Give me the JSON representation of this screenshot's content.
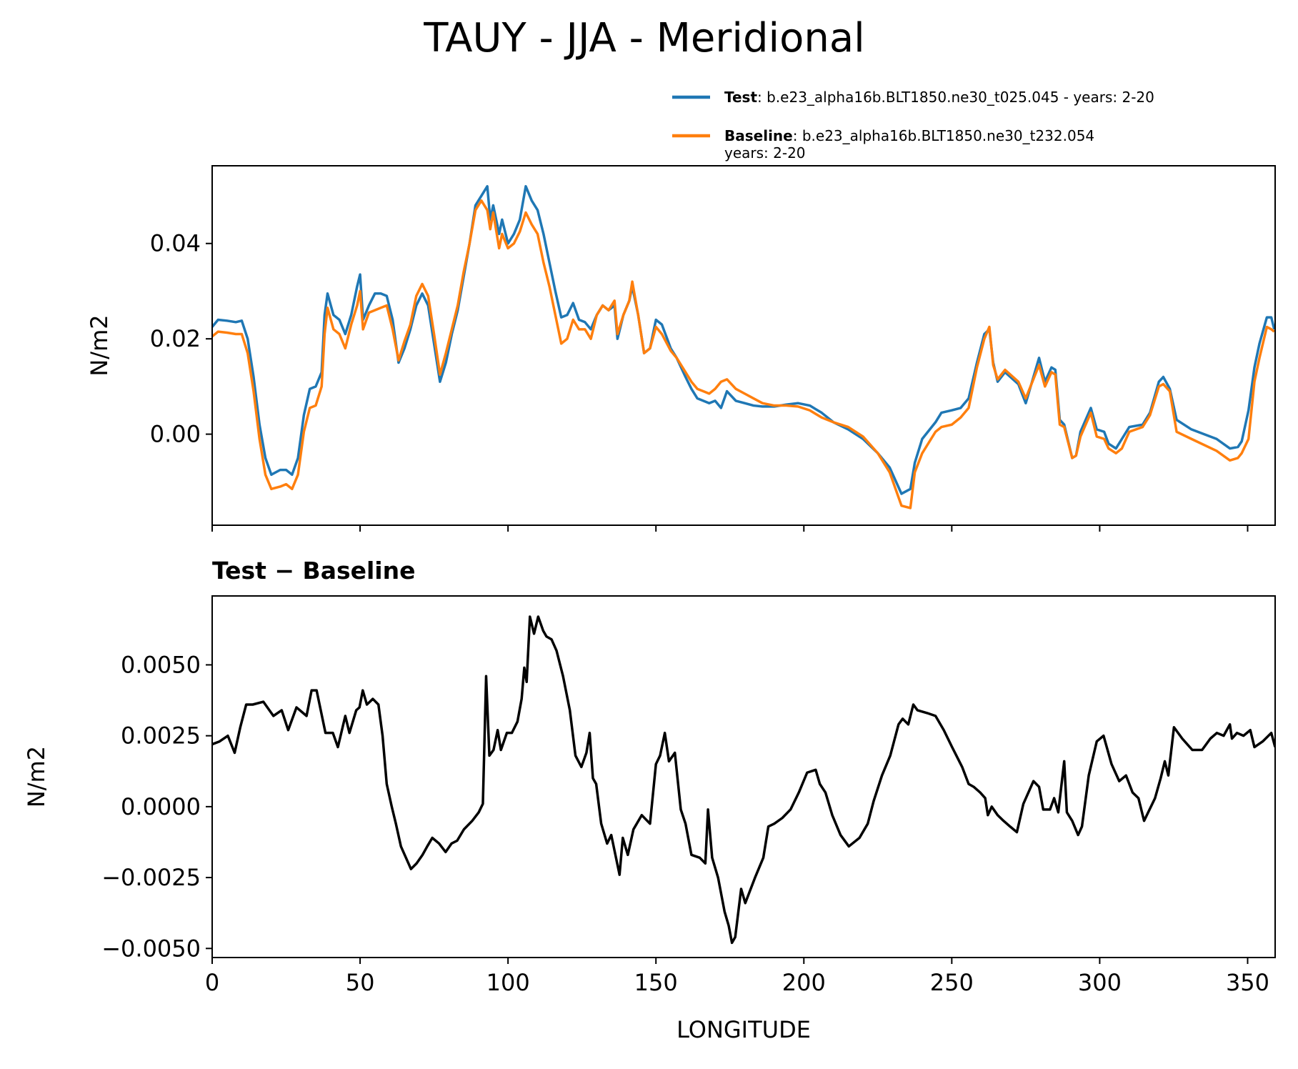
{
  "chart_data": [
    {
      "type": "line",
      "title": "TAUY - JJA - Meridional",
      "ylabel": "N/m2",
      "xlim": [
        0,
        359.3
      ],
      "xticks": [
        0,
        50,
        100,
        150,
        200,
        250,
        300,
        350
      ],
      "ylim": [
        -0.0191,
        0.0563
      ],
      "yticks": [
        {
          "value": 0,
          "label": "0.00"
        },
        0.02,
        0.04
      ],
      "legend": "upper right",
      "x": [
        0,
        2,
        5,
        8,
        10,
        12,
        14,
        16,
        18,
        20,
        23,
        25,
        27,
        29,
        31,
        33,
        35,
        37,
        38,
        39,
        41,
        43,
        45,
        47,
        49,
        50,
        51,
        53,
        55,
        57,
        59,
        61,
        63,
        65,
        67,
        69,
        71,
        73,
        75,
        77,
        79,
        81,
        83,
        85,
        87,
        89,
        91,
        93,
        94,
        95,
        97,
        98,
        100,
        102,
        104,
        106,
        108,
        110,
        112,
        114,
        116,
        118,
        120,
        122,
        124,
        126,
        128,
        130,
        132,
        134,
        136,
        137,
        139,
        141,
        142,
        144,
        146,
        148,
        150,
        152,
        155,
        157,
        160,
        162,
        164,
        166,
        168,
        170,
        172,
        174,
        177,
        180,
        183,
        186,
        190,
        194,
        198,
        202,
        206,
        210,
        215,
        220,
        225,
        229,
        233,
        236,
        237.5,
        240,
        244.5,
        246.5,
        250,
        253,
        255.7,
        258.5,
        261,
        262.7,
        264,
        265.5,
        268,
        272.5,
        275,
        279.5,
        281.5,
        283.7,
        285,
        286.5,
        288,
        290.7,
        292,
        293.5,
        297,
        299,
        301.5,
        303,
        305.5,
        307.5,
        310,
        314.5,
        317,
        320,
        321.5,
        323.7,
        326,
        331,
        339.5,
        344,
        346.7,
        348,
        350.3,
        352.3,
        354,
        356.5,
        358,
        359
      ],
      "series": [
        {
          "name": "Test",
          "description": [
            ": b.e23_alpha16b.BLT1850.ne30_t025.045 - years: 2-20"
          ],
          "color": "#1f77b4",
          "values": [
            0.0225,
            0.024,
            0.0238,
            0.0235,
            0.0238,
            0.02,
            0.012,
            0.002,
            -0.005,
            -0.0085,
            -0.0075,
            -0.0075,
            -0.0085,
            -0.005,
            0.004,
            0.0095,
            0.01,
            0.013,
            0.025,
            0.0295,
            0.025,
            0.024,
            0.021,
            0.025,
            0.031,
            0.0335,
            0.024,
            0.027,
            0.0295,
            0.0295,
            0.029,
            0.024,
            0.015,
            0.018,
            0.022,
            0.027,
            0.0295,
            0.027,
            0.019,
            0.011,
            0.015,
            0.021,
            0.026,
            0.033,
            0.04,
            0.048,
            0.05,
            0.052,
            0.045,
            0.048,
            0.042,
            0.045,
            0.04,
            0.042,
            0.045,
            0.052,
            0.049,
            0.047,
            0.042,
            0.036,
            0.03,
            0.0245,
            0.025,
            0.0275,
            0.024,
            0.0235,
            0.022,
            0.025,
            0.027,
            0.026,
            0.027,
            0.02,
            0.025,
            0.028,
            0.031,
            0.025,
            0.017,
            0.018,
            0.024,
            0.023,
            0.018,
            0.016,
            0.012,
            0.0095,
            0.0075,
            0.007,
            0.0065,
            0.007,
            0.0055,
            0.009,
            0.007,
            0.0065,
            0.006,
            0.0058,
            0.0058,
            0.0062,
            0.0065,
            0.006,
            0.0045,
            0.0025,
            0.001,
            -0.001,
            -0.004,
            -0.007,
            -0.0125,
            -0.0115,
            -0.006,
            -0.001,
            0.0025,
            0.0045,
            0.005,
            0.0055,
            0.0075,
            0.015,
            0.021,
            0.022,
            0.015,
            0.011,
            0.013,
            0.0105,
            0.0065,
            0.016,
            0.011,
            0.014,
            0.0135,
            0.003,
            0.002,
            -0.005,
            -0.0045,
            0.0005,
            0.0055,
            0.001,
            0.0005,
            -0.002,
            -0.003,
            -0.001,
            0.0015,
            0.002,
            0.0045,
            0.011,
            0.012,
            0.0095,
            0.003,
            0.001,
            -0.001,
            -0.003,
            -0.0027,
            -0.0015,
            0.005,
            0.014,
            0.019,
            0.0245,
            0.0245,
            0.022
          ]
        },
        {
          "name": "Baseline",
          "description": [
            ": b.e23_alpha16b.BLT1850.ne30_t232.054",
            "years: 2-20"
          ],
          "color": "#ff7f0e",
          "values": [
            0.0205,
            0.0215,
            0.0213,
            0.021,
            0.021,
            0.017,
            0.009,
            -0.001,
            -0.0085,
            -0.0115,
            -0.011,
            -0.0105,
            -0.0115,
            -0.0085,
            0.0005,
            0.0055,
            0.006,
            0.01,
            0.021,
            0.0265,
            0.022,
            0.021,
            0.018,
            0.023,
            0.027,
            0.03,
            0.022,
            0.0255,
            0.026,
            0.0265,
            0.027,
            0.022,
            0.0155,
            0.0195,
            0.023,
            0.029,
            0.0315,
            0.029,
            0.021,
            0.0125,
            0.017,
            0.022,
            0.027,
            0.034,
            0.04,
            0.047,
            0.049,
            0.047,
            0.043,
            0.0465,
            0.039,
            0.042,
            0.039,
            0.04,
            0.0425,
            0.0465,
            0.044,
            0.042,
            0.036,
            0.031,
            0.025,
            0.019,
            0.02,
            0.024,
            0.022,
            0.022,
            0.02,
            0.025,
            0.027,
            0.026,
            0.028,
            0.021,
            0.025,
            0.028,
            0.032,
            0.025,
            0.017,
            0.018,
            0.0225,
            0.021,
            0.0175,
            0.016,
            0.013,
            0.011,
            0.0095,
            0.009,
            0.0085,
            0.0095,
            0.011,
            0.0115,
            0.0095,
            0.0085,
            0.0075,
            0.0065,
            0.006,
            0.006,
            0.0058,
            0.005,
            0.0035,
            0.0025,
            0.0015,
            -0.0005,
            -0.004,
            -0.008,
            -0.015,
            -0.0155,
            -0.008,
            -0.004,
            0.0005,
            0.0015,
            0.002,
            0.0035,
            0.0055,
            0.014,
            0.02,
            0.0225,
            0.0145,
            0.0115,
            0.0135,
            0.011,
            0.0075,
            0.0145,
            0.01,
            0.013,
            0.0125,
            0.002,
            0.0015,
            -0.005,
            -0.0045,
            -0.0005,
            0.0045,
            -0.0005,
            -0.001,
            -0.003,
            -0.004,
            -0.003,
            0.0005,
            0.0015,
            0.004,
            0.01,
            0.0105,
            0.009,
            0.0005,
            -0.001,
            -0.0035,
            -0.0055,
            -0.005,
            -0.004,
            -0.001,
            0.011,
            0.016,
            0.0225,
            0.022,
            0.0215
          ]
        }
      ]
    },
    {
      "type": "line",
      "subtitle": "Test − Baseline",
      "ylabel": "N/m2",
      "xlabel": "LONGITUDE",
      "xlim": [
        0,
        359.3
      ],
      "xticks": [
        0,
        50,
        100,
        150,
        200,
        250,
        300,
        350
      ],
      "ylim": [
        -0.00532,
        0.00743
      ],
      "yticks": [
        {
          "value": -0.005,
          "label": "−0.0050"
        },
        {
          "value": -0.0025,
          "label": "−0.0025"
        },
        {
          "value": 0,
          "label": "0.0000"
        },
        0.0025,
        {
          "value": 0.005,
          "label": "0.0050"
        }
      ],
      "x": [
        0,
        2.5,
        5.3,
        7.6,
        9.5,
        11.5,
        13.7,
        17.3,
        20.7,
        23.5,
        25.7,
        28.5,
        31.9,
        33.6,
        35.3,
        38.3,
        40.8,
        42.5,
        45,
        46.4,
        48.7,
        49.8,
        50.9,
        52.3,
        54.3,
        56.2,
        57.6,
        59,
        60.7,
        62.1,
        63.8,
        65.5,
        67.2,
        69.1,
        71.1,
        72.7,
        74.4,
        76.7,
        78.9,
        80.9,
        82.8,
        85.1,
        87.9,
        90.1,
        91.5,
        92.6,
        93.7,
        95.1,
        96.5,
        97.6,
        99.6,
        101.3,
        103.2,
        104.6,
        105.5,
        106.3,
        107.4,
        108.8,
        110.2,
        111.9,
        113,
        114.7,
        116.4,
        118.6,
        120.9,
        122.8,
        124.8,
        126.5,
        127.6,
        128.7,
        129.8,
        131.5,
        133.5,
        134.9,
        136.5,
        137.7,
        138.8,
        140.5,
        142.4,
        145.2,
        148,
        150,
        151.4,
        153,
        154.4,
        156.4,
        158.4,
        160,
        162,
        164.8,
        166.7,
        167.6,
        169,
        171,
        173.2,
        174.6,
        175.7,
        176.8,
        178.8,
        180.2,
        183.5,
        186.3,
        188,
        190,
        192.7,
        195.5,
        198.3,
        201.1,
        204,
        205.4,
        207.3,
        209.6,
        212.4,
        215.2,
        218.8,
        221.6,
        223.6,
        226.4,
        229.2,
        232,
        233.4,
        235.3,
        237,
        238.4,
        241.7,
        244.5,
        247.3,
        250.1,
        253.5,
        255.7,
        257.4,
        259.6,
        261.3,
        262.2,
        263.5,
        265.5,
        267.5,
        269.7,
        272,
        274.2,
        277.6,
        279.5,
        280.9,
        283.2,
        284.6,
        286,
        288,
        288.9,
        290.7,
        292.7,
        294,
        296.3,
        299,
        301.3,
        304,
        306.6,
        308.9,
        311.1,
        313.1,
        315,
        318.7,
        320.6,
        322,
        323.2,
        325.1,
        327.9,
        331.3,
        334.6,
        337.4,
        339.6,
        341.9,
        344,
        344.7,
        346.4,
        348.6,
        350.9,
        352.3,
        355.1,
        358,
        359.3
      ],
      "series": [
        {
          "color": "#000000",
          "values": [
            0.0022,
            0.0023,
            0.0025,
            0.0019,
            0.0028,
            0.0036,
            0.0036,
            0.0037,
            0.0032,
            0.0034,
            0.0027,
            0.0035,
            0.0032,
            0.0041,
            0.0041,
            0.0026,
            0.0026,
            0.0021,
            0.0032,
            0.0026,
            0.0034,
            0.0035,
            0.0041,
            0.0036,
            0.0038,
            0.0036,
            0.0025,
            0.0008,
            0.0,
            -0.0006,
            -0.0014,
            -0.0018,
            -0.0022,
            -0.002,
            -0.0017,
            -0.0014,
            -0.0011,
            -0.0013,
            -0.0016,
            -0.0013,
            -0.0012,
            -0.0008,
            -0.0005,
            -0.0002,
            0.0001,
            0.0046,
            0.0018,
            0.002,
            0.0027,
            0.002,
            0.0026,
            0.0026,
            0.003,
            0.0038,
            0.0049,
            0.0044,
            0.0067,
            0.0061,
            0.0067,
            0.0062,
            0.006,
            0.0059,
            0.0055,
            0.0046,
            0.0034,
            0.0018,
            0.0014,
            0.0019,
            0.0026,
            0.001,
            0.0008,
            -0.0006,
            -0.0013,
            -0.001,
            -0.0018,
            -0.0024,
            -0.0011,
            -0.0017,
            -0.0008,
            -0.0003,
            -0.0006,
            0.0015,
            0.0018,
            0.0026,
            0.0016,
            0.0019,
            -0.0001,
            -0.0006,
            -0.0017,
            -0.0018,
            -0.002,
            -0.0001,
            -0.0018,
            -0.0025,
            -0.0037,
            -0.0042,
            -0.0048,
            -0.0046,
            -0.0029,
            -0.0034,
            -0.0025,
            -0.0018,
            -0.0007,
            -0.0006,
            -0.0004,
            -0.0001,
            0.0005,
            0.0012,
            0.0013,
            0.0008,
            0.0005,
            -0.0003,
            -0.001,
            -0.0014,
            -0.0011,
            -0.0006,
            0.0002,
            0.0011,
            0.0018,
            0.0029,
            0.0031,
            0.0029,
            0.0036,
            0.0034,
            0.0033,
            0.0032,
            0.0027,
            0.0021,
            0.0014,
            0.0008,
            0.0007,
            0.0005,
            0.0003,
            -0.0003,
            0.0,
            -0.0003,
            -0.0005,
            -0.0007,
            -0.0009,
            0.0001,
            0.0009,
            0.0007,
            -0.0001,
            -0.0001,
            0.0003,
            -0.0002,
            0.0016,
            -0.0002,
            -0.0005,
            -0.001,
            -0.0007,
            0.0011,
            0.0023,
            0.0025,
            0.0015,
            0.0009,
            0.0011,
            0.0005,
            0.0003,
            -0.0005,
            0.0003,
            0.001,
            0.0016,
            0.0011,
            0.0028,
            0.0024,
            0.002,
            0.002,
            0.0024,
            0.0026,
            0.0025,
            0.0029,
            0.0024,
            0.0026,
            0.0025,
            0.0027,
            0.0021,
            0.0023,
            0.0026,
            0.0021
          ]
        }
      ]
    }
  ]
}
